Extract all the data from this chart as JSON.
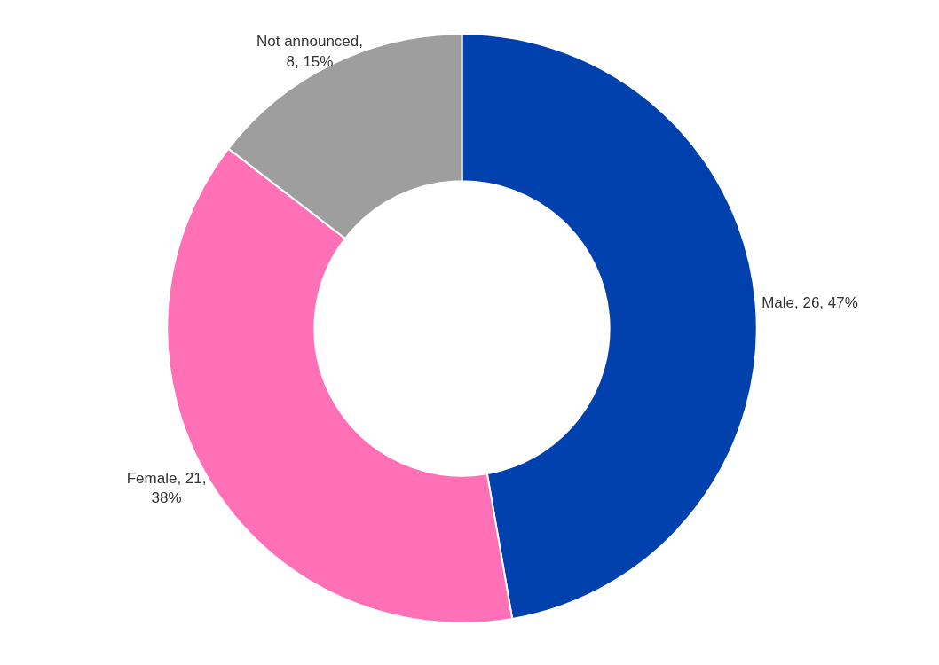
{
  "chart_data": {
    "type": "donut",
    "categories": [
      "Male",
      "Female",
      "Not announced"
    ],
    "values": [
      26,
      21,
      8
    ],
    "value_labels": [
      ", 26, 47%",
      ", 21,\n38%",
      ",\n8, 15%"
    ],
    "colors": [
      "#0041ae",
      "#ff70b6",
      "#9e9e9e"
    ],
    "legend": false
  }
}
